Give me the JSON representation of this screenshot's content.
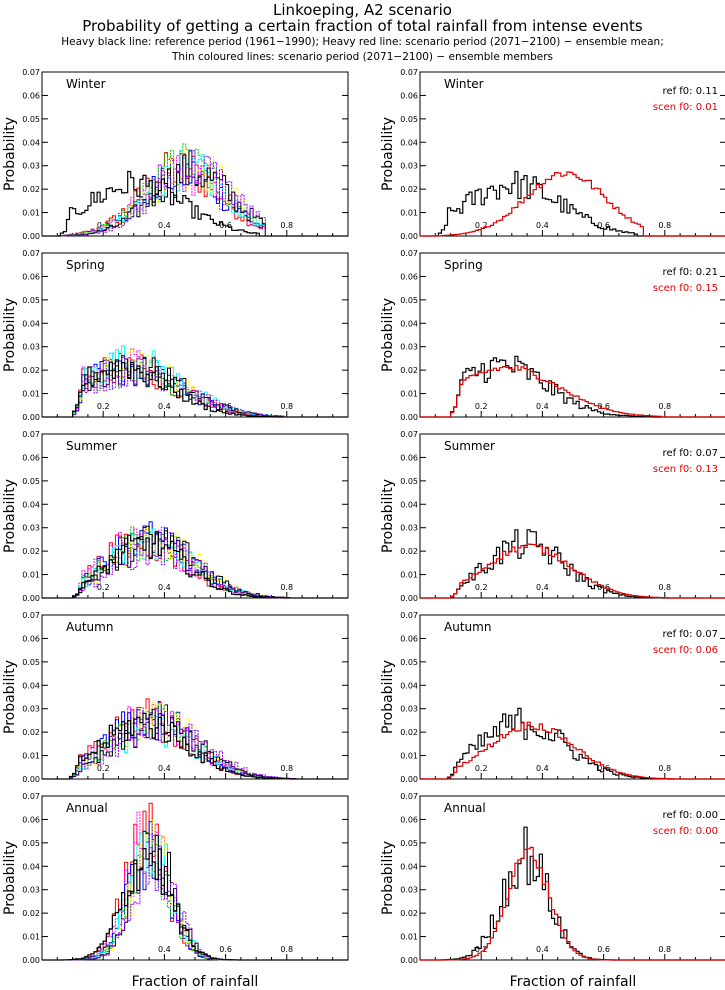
{
  "header": {
    "title": "Linkoeping, A2 scenario",
    "subtitle": "Probability of getting a certain fraction of total rainfall from intense events",
    "note1": "Heavy black line: reference period (1961−1990); Heavy red line: scenario period (2071−2100) − ensemble mean;",
    "note2": "Thin coloured lines: scenario period (2071−2100) − ensemble members"
  },
  "colors": {
    "reference": "#000000",
    "scenario": "#dd0000",
    "members": [
      "#ff0000",
      "#ff00ff",
      "#0000ff",
      "#00cc00",
      "#00ffff",
      "#ffff00",
      "#000000",
      "#9900ff"
    ]
  },
  "chart_data": {
    "type": "line",
    "xlabel": "Fraction of rainfall",
    "ylabel": "Probability",
    "xlim": [
      0,
      1
    ],
    "ylim": [
      0,
      0.07
    ],
    "xticks": [
      "0.2",
      "0.4",
      "0.6",
      "0.8"
    ],
    "yticks": [
      "0.00",
      "0.01",
      "0.02",
      "0.03",
      "0.04",
      "0.05",
      "0.06",
      "0.07"
    ],
    "grid": false,
    "panels": [
      {
        "season": "Winter",
        "ref_label": "ref  f0: 0.11",
        "scen_label": "scen f0: 0.01",
        "ref": {
          "center": 0.3,
          "width": 0.16,
          "peak": 0.022,
          "start": 0.06,
          "end": 0.7
        },
        "scen": {
          "center": 0.47,
          "width": 0.13,
          "peak": 0.027,
          "start": 0.05,
          "end": 0.72
        },
        "members_spread": 0.035
      },
      {
        "season": "Spring",
        "ref_label": "ref  f0: 0.21",
        "scen_label": "scen f0: 0.15",
        "ref": {
          "center": 0.26,
          "width": 0.15,
          "peak": 0.022,
          "start": 0.1,
          "end": 0.75
        },
        "scen": {
          "center": 0.28,
          "width": 0.17,
          "peak": 0.021,
          "start": 0.1,
          "end": 0.78
        },
        "members_spread": 0.025
      },
      {
        "season": "Summer",
        "ref_label": "ref  f0: 0.07",
        "scen_label": "scen f0: 0.13",
        "ref": {
          "center": 0.34,
          "width": 0.13,
          "peak": 0.023,
          "start": 0.1,
          "end": 0.78
        },
        "scen": {
          "center": 0.35,
          "width": 0.14,
          "peak": 0.022,
          "start": 0.1,
          "end": 0.8
        },
        "members_spread": 0.04
      },
      {
        "season": "Autumn",
        "ref_label": "ref  f0: 0.07",
        "scen_label": "scen f0: 0.06",
        "ref": {
          "center": 0.33,
          "width": 0.14,
          "peak": 0.024,
          "start": 0.09,
          "end": 0.8
        },
        "scen": {
          "center": 0.36,
          "width": 0.14,
          "peak": 0.023,
          "start": 0.09,
          "end": 0.82
        },
        "members_spread": 0.04
      },
      {
        "season": "Annual",
        "ref_label": "ref  f0: 0.00",
        "scen_label": "scen f0: 0.00",
        "ref": {
          "center": 0.34,
          "width": 0.075,
          "peak": 0.045,
          "start": 0.05,
          "end": 0.65
        },
        "scen": {
          "center": 0.35,
          "width": 0.068,
          "peak": 0.046,
          "start": 0.05,
          "end": 0.65
        },
        "members_spread": 0.025
      }
    ]
  }
}
